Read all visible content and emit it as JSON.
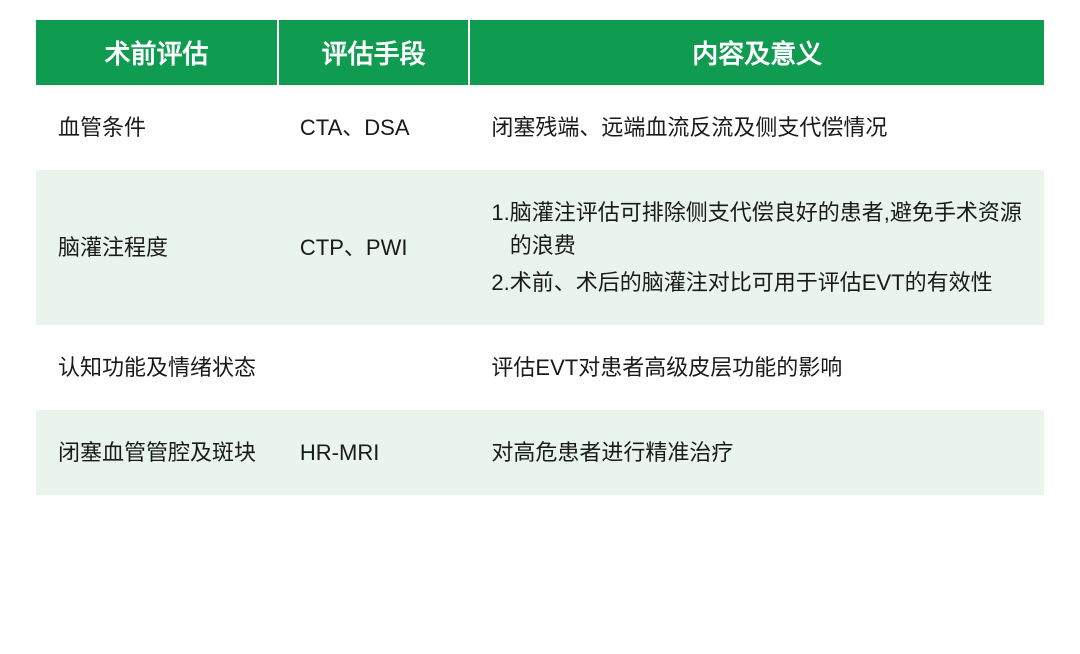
{
  "style": {
    "header_bg": "#0f9b50",
    "header_color": "#ffffff",
    "header_fontsize": 26,
    "row_even_bg": "#ffffff",
    "row_odd_bg": "#e8f4ec",
    "cell_color": "#1a1a1a",
    "cell_fontsize": 22,
    "col_widths_pct": [
      24,
      19,
      57
    ]
  },
  "headers": {
    "c1": "术前评估",
    "c2": "评估手段",
    "c3": "内容及意义"
  },
  "rows": [
    {
      "c1": "血管条件",
      "c2": "CTA、DSA",
      "c3_type": "text",
      "c3": "闭塞残端、远端血流反流及侧支代偿情况"
    },
    {
      "c1": "脑灌注程度",
      "c2": "CTP、PWI",
      "c3_type": "list",
      "c3_items": [
        {
          "num": "1.",
          "text": "脑灌注评估可排除侧支代偿良好的患者,避免手术资源的浪费"
        },
        {
          "num": "2.",
          "text": "术前、术后的脑灌注对比可用于评估EVT的有效性"
        }
      ]
    },
    {
      "c1": "认知功能及情绪状态",
      "c2": "",
      "c3_type": "text",
      "c3": "评估EVT对患者高级皮层功能的影响"
    },
    {
      "c1": "闭塞血管管腔及斑块",
      "c2": "HR-MRI",
      "c3_type": "text",
      "c3": "对高危患者进行精准治疗"
    }
  ]
}
